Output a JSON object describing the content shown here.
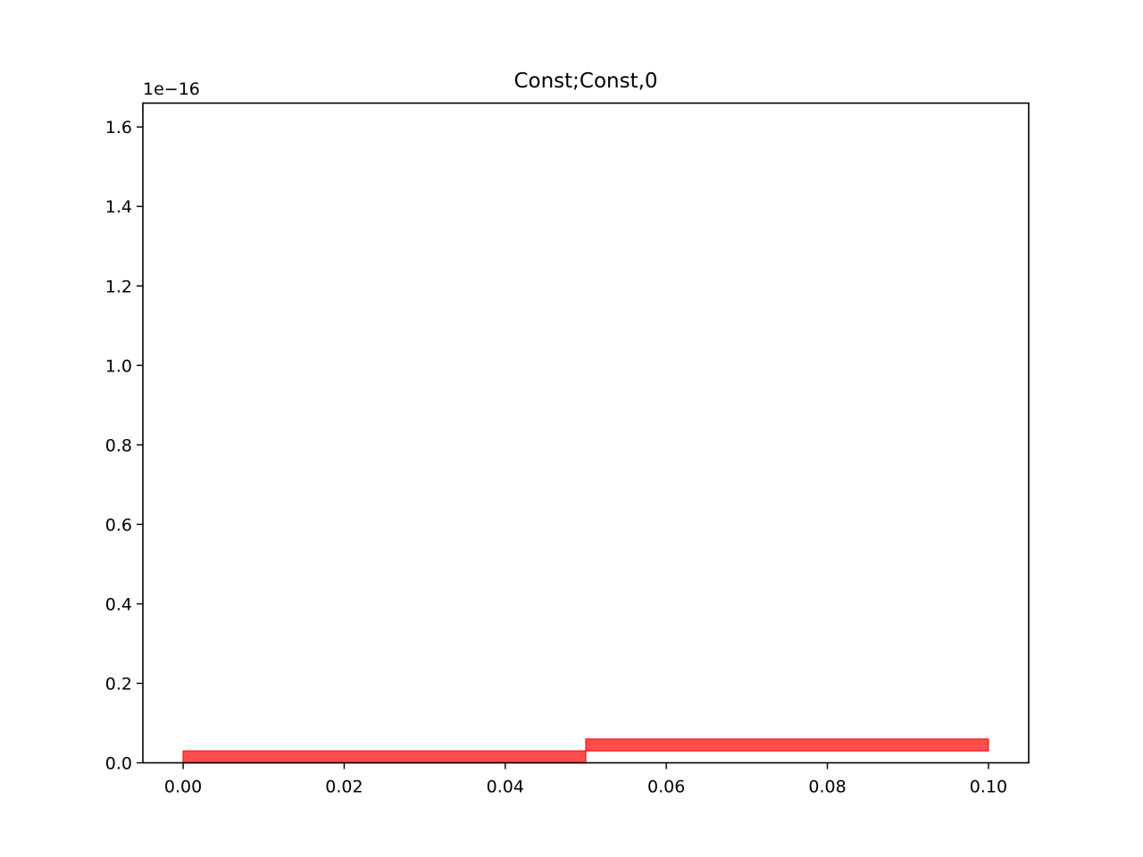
{
  "chart_data": {
    "type": "bar",
    "title": "Const;Const,0",
    "xlabel": "",
    "ylabel": "",
    "y_offset_label": "1e−16",
    "xlim": [
      -0.005,
      0.105
    ],
    "ylim": [
      0,
      1.66
    ],
    "x_ticks": [
      {
        "value": 0.0,
        "label": "0.00"
      },
      {
        "value": 0.02,
        "label": "0.02"
      },
      {
        "value": 0.04,
        "label": "0.04"
      },
      {
        "value": 0.06,
        "label": "0.06"
      },
      {
        "value": 0.08,
        "label": "0.08"
      },
      {
        "value": 0.1,
        "label": "0.10"
      }
    ],
    "y_ticks": [
      {
        "value": 0.0,
        "label": "0.0"
      },
      {
        "value": 0.2,
        "label": "0.2"
      },
      {
        "value": 0.4,
        "label": "0.4"
      },
      {
        "value": 0.6,
        "label": "0.6"
      },
      {
        "value": 0.8,
        "label": "0.8"
      },
      {
        "value": 1.0,
        "label": "1.0"
      },
      {
        "value": 1.2,
        "label": "1.2"
      },
      {
        "value": 1.4,
        "label": "1.4"
      },
      {
        "value": 1.6,
        "label": "1.6"
      }
    ],
    "grid": false,
    "legend": "none",
    "bars": [
      {
        "x0": 0.0,
        "x1": 0.05,
        "y0": 0.0,
        "y1": 0.03
      },
      {
        "x0": 0.05,
        "x1": 0.1,
        "y0": 0.03,
        "y1": 0.06
      }
    ],
    "bar_color": "#ff0000",
    "bar_opacity": 0.7
  }
}
